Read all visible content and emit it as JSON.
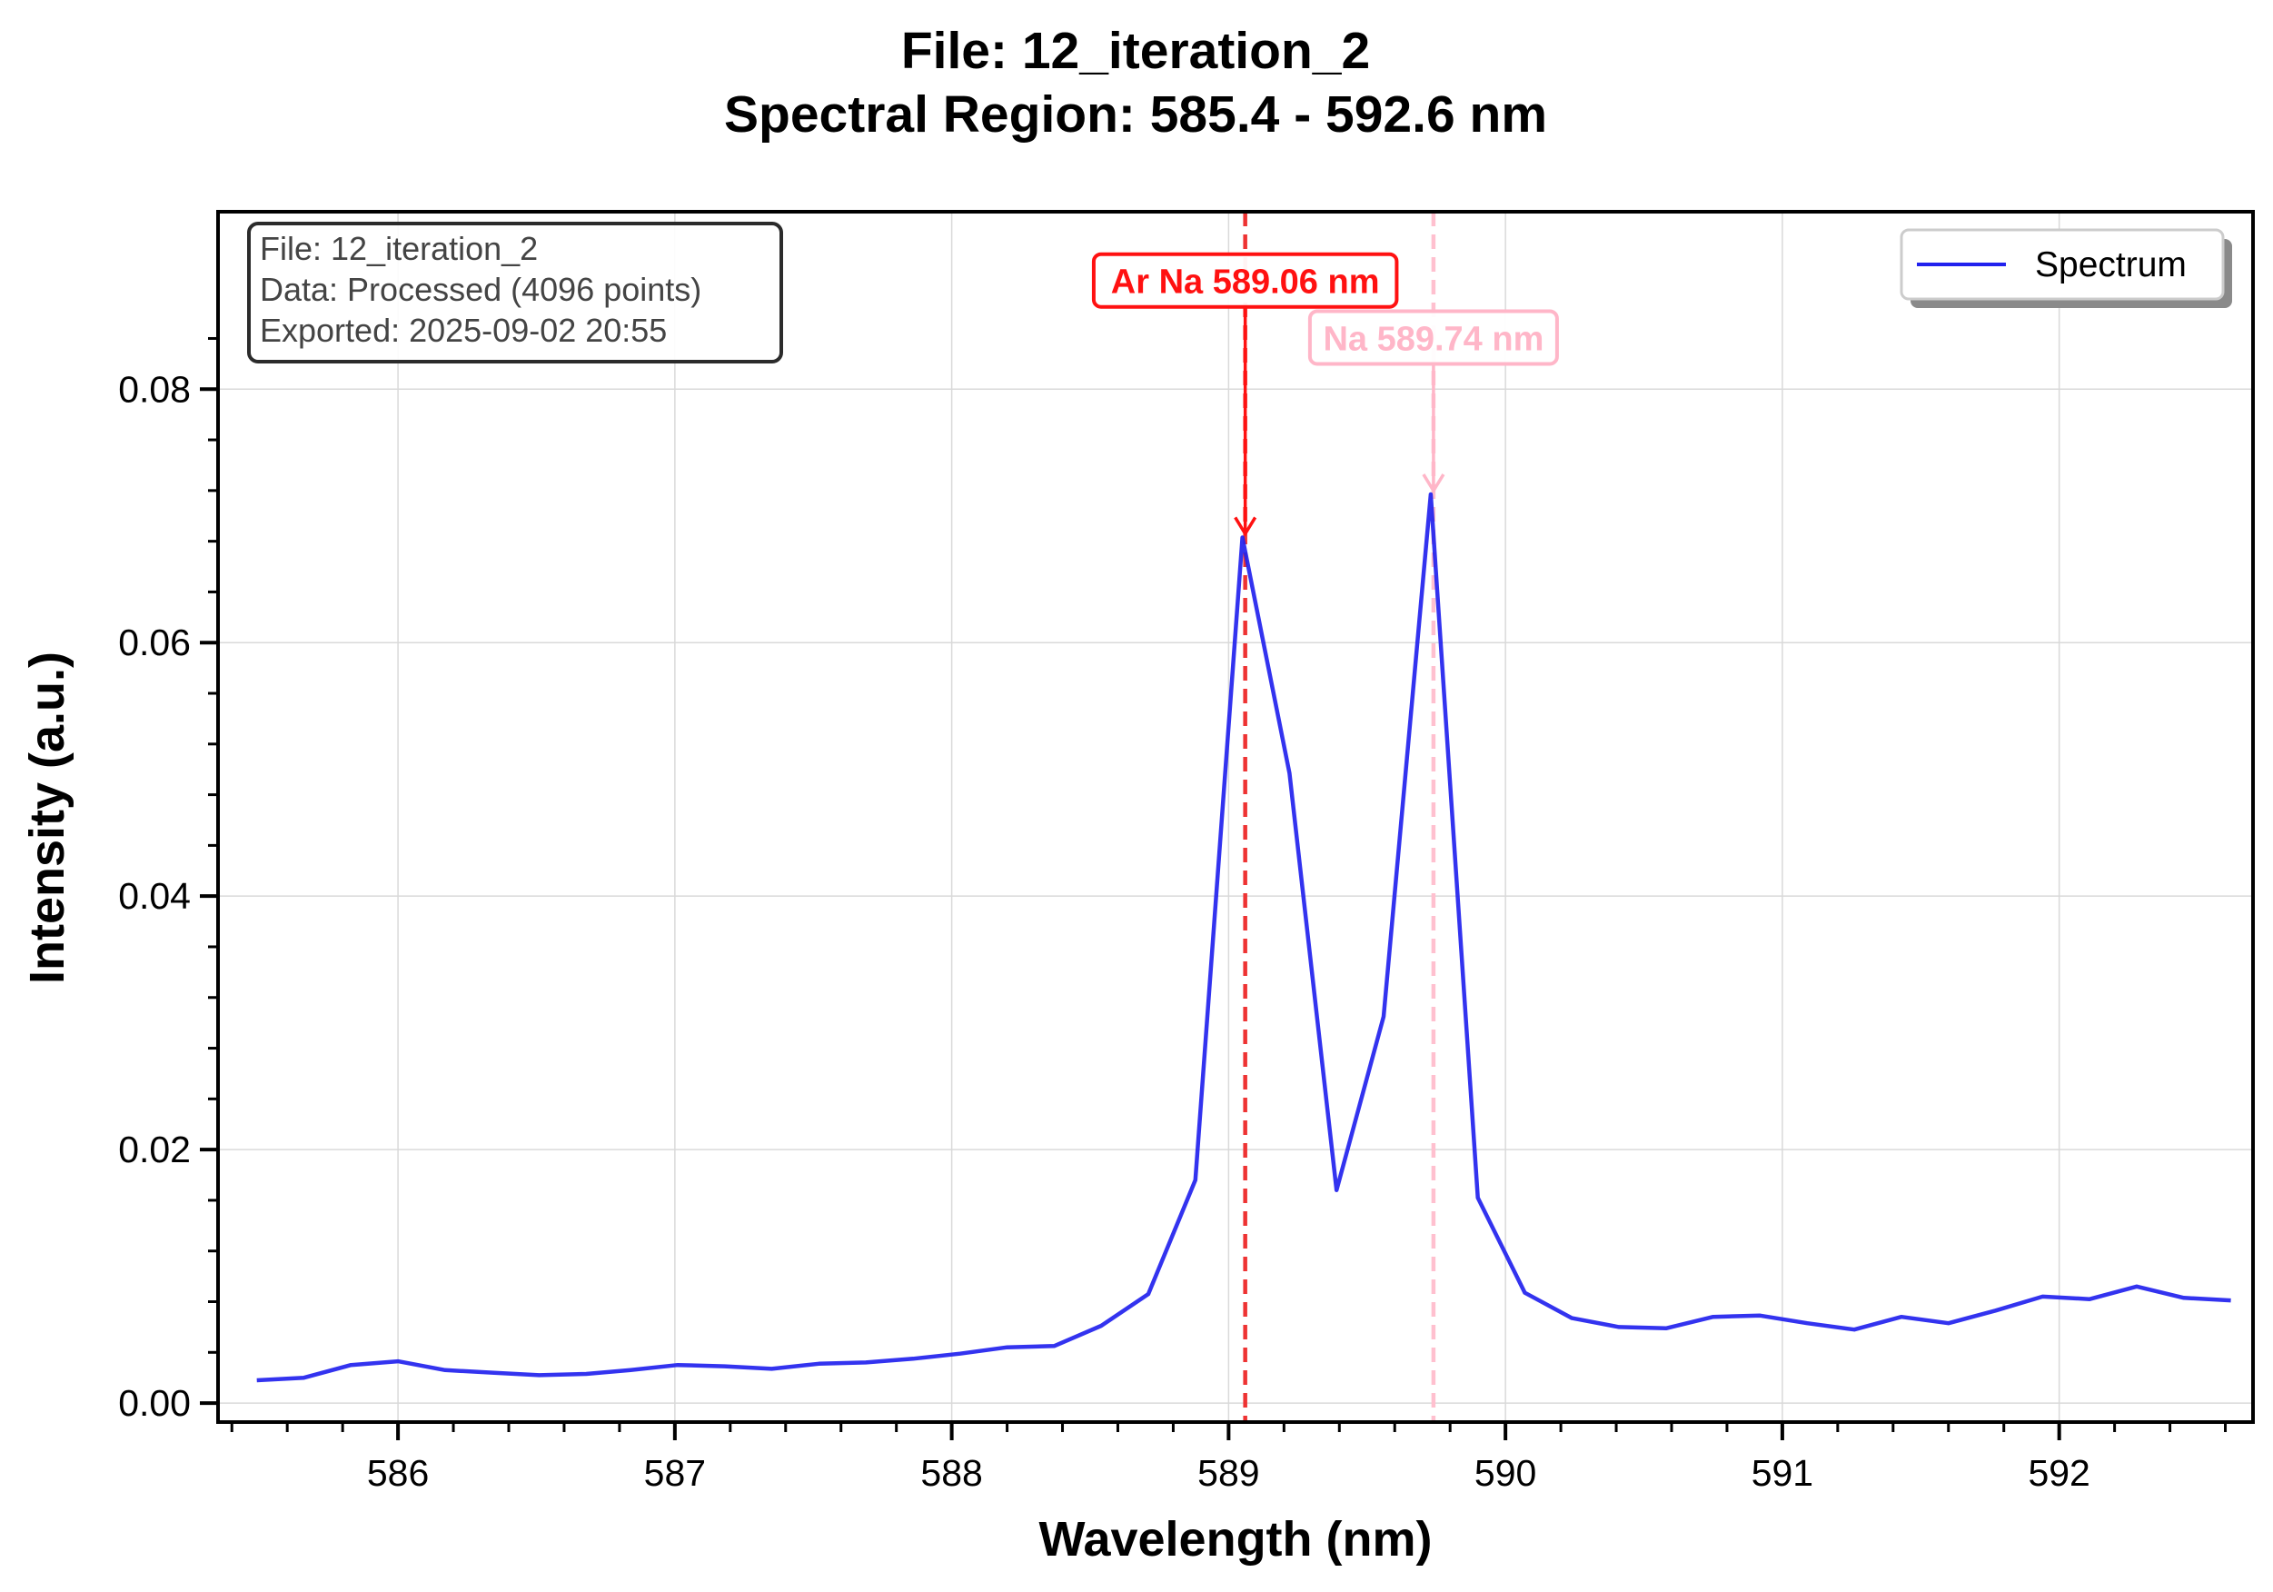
{
  "chart_data": {
    "type": "line",
    "title": "File: 12_iteration_2",
    "subtitle": "Spectral Region: 585.4 - 592.6 nm",
    "xlabel": "Wavelength (nm)",
    "ylabel": "Intensity (a.u.)",
    "xlim": [
      585.35,
      592.7
    ],
    "ylim": [
      -0.0015,
      0.094
    ],
    "xticks": [
      586,
      587,
      588,
      589,
      590,
      591,
      592
    ],
    "yticks": [
      0.0,
      0.02,
      0.04,
      0.06,
      0.08
    ],
    "xtick_labels": [
      "586",
      "587",
      "588",
      "589",
      "590",
      "591",
      "592"
    ],
    "ytick_labels": [
      "0.00",
      "0.02",
      "0.04",
      "0.06",
      "0.08"
    ],
    "grid": true,
    "legend_position": "top-right",
    "series": [
      {
        "name": "Spectrum",
        "color": "#2222ee",
        "x": [
          585.49,
          585.66,
          585.83,
          586.0,
          586.17,
          586.34,
          586.51,
          586.68,
          586.84,
          587.01,
          587.18,
          587.35,
          587.52,
          587.69,
          587.86,
          588.03,
          588.2,
          588.37,
          588.54,
          588.71,
          588.88,
          589.05,
          589.22,
          589.39,
          589.56,
          589.73,
          589.9,
          590.07,
          590.24,
          590.41,
          590.58,
          590.75,
          590.92,
          591.09,
          591.26,
          591.43,
          591.6,
          591.77,
          591.94,
          592.11,
          592.28,
          592.45,
          592.62
        ],
        "values": [
          0.0018,
          0.002,
          0.003,
          0.0033,
          0.0026,
          0.0024,
          0.0022,
          0.0023,
          0.0026,
          0.003,
          0.0029,
          0.0027,
          0.0031,
          0.0032,
          0.0035,
          0.0039,
          0.0044,
          0.0045,
          0.0061,
          0.0086,
          0.0176,
          0.0683,
          0.0497,
          0.0168,
          0.0305,
          0.0717,
          0.0162,
          0.0087,
          0.0067,
          0.006,
          0.0059,
          0.0068,
          0.0069,
          0.0063,
          0.0058,
          0.0068,
          0.0063,
          0.0073,
          0.0084,
          0.0082,
          0.0092,
          0.0083,
          0.0081
        ]
      }
    ],
    "annotations": [
      {
        "label": "Ar Na 589.06 nm",
        "x": 589.06,
        "peak": 0.0683,
        "text_y": 0.0885,
        "color": "#ff1111",
        "line_color": "#ee3333",
        "face": "#ffffff"
      },
      {
        "label": "Na 589.74 nm",
        "x": 589.74,
        "peak": 0.0717,
        "text_y": 0.084,
        "color": "#ffb6c8",
        "line_color": "#ffc0cf",
        "face": "#ffffff"
      }
    ],
    "info_box": [
      "File: 12_iteration_2",
      "Data: Processed (4096 points)",
      "Exported: 2025-09-02 20:55"
    ]
  }
}
